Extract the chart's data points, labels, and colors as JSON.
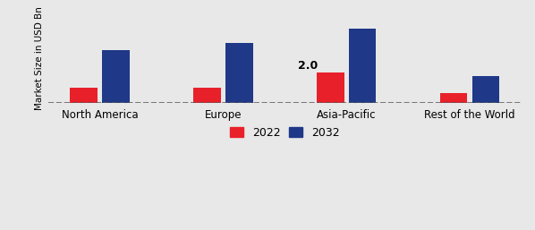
{
  "categories": [
    "North America",
    "Europe",
    "Asia-Pacific",
    "Rest of the World"
  ],
  "values_2022": [
    1.0,
    1.0,
    2.0,
    0.65
  ],
  "values_2032": [
    3.5,
    4.0,
    5.0,
    1.8
  ],
  "color_2022": "#e8202a",
  "color_2032": "#1f3888",
  "ylabel": "Market Size in USD Bn",
  "legend_2022": "2022",
  "legend_2032": "2032",
  "annotation_text": "2.0",
  "annotation_category_index": 2,
  "bar_width": 0.22,
  "background_color": "#e8e8e8",
  "ylim": [
    0,
    6.0
  ],
  "xlabel_fontsize": 8.5,
  "ylabel_fontsize": 7.5
}
